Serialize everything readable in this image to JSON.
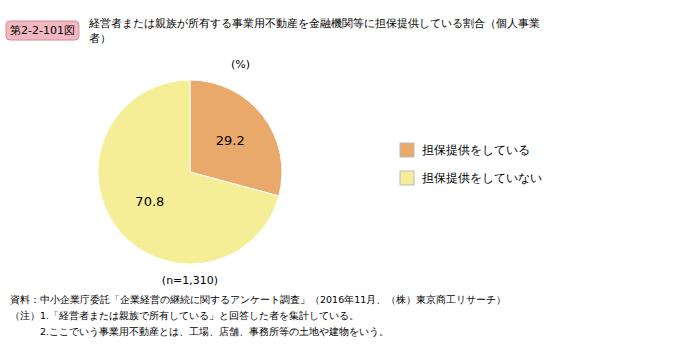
{
  "chart_data": {
    "type": "pie",
    "figure_label": "第2-2-101図",
    "title": [
      "経営者または親族が所有する事業用不動産を金融機関等に担保提供している割合（個人事業",
      "者）"
    ],
    "categories": [
      "担保提供をしている",
      "担保提供をしていない"
    ],
    "values": [
      29.2,
      70.8
    ],
    "colors": [
      "#E8A96A",
      "#F5EE96"
    ],
    "data_labels": true,
    "legend": "right",
    "annotations": [
      "(%)",
      "(n=1,310)"
    ],
    "notes": [
      "資料：中小企業庁委託「企業経営の継続に関するアンケート調査」（2016年11月、（株）東京商工リサーチ）",
      "（注）1.「経営者または親族で所有している」と回答した者を集計している。",
      "　　　2.ここでいう事業用不動産とは、工場、店舗、事務所等の土地や建物をいう。"
    ]
  }
}
